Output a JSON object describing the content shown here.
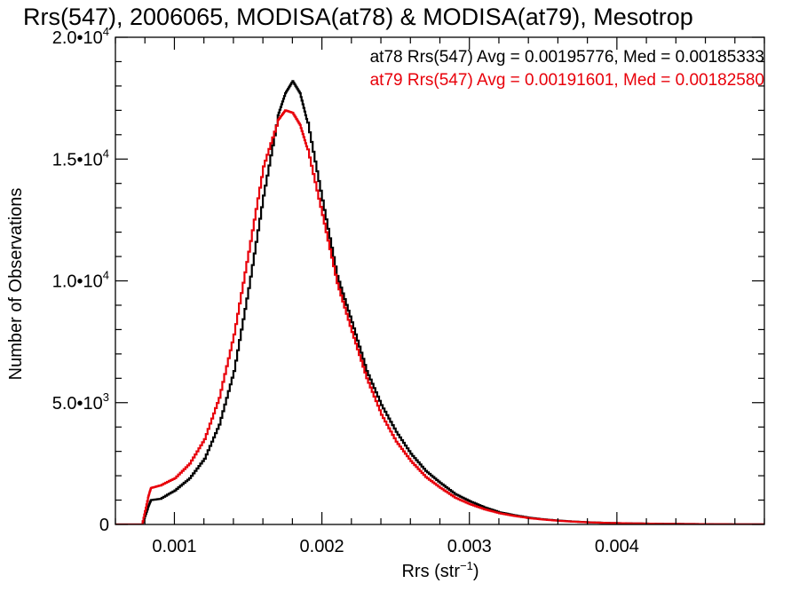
{
  "chart_data": {
    "type": "line",
    "step": true,
    "title": "Rrs(547), 2006065, MODISA(at78) & MODISA(at79), Mesotrop",
    "xlabel": {
      "base": "Rrs (str",
      "sup": "−1",
      "end": ")"
    },
    "ylabel": "Number of Observations",
    "xlim": [
      0.0006,
      0.005
    ],
    "ylim": [
      0,
      20000
    ],
    "x_ticks": [
      {
        "value": 0.001,
        "label": "0.001"
      },
      {
        "value": 0.002,
        "label": "0.002"
      },
      {
        "value": 0.003,
        "label": "0.003"
      },
      {
        "value": 0.004,
        "label": "0.004"
      }
    ],
    "y_ticks": [
      {
        "value": 0,
        "base": "0",
        "exp": ""
      },
      {
        "value": 5000,
        "base": "5.0•10",
        "exp": "3"
      },
      {
        "value": 10000,
        "base": "1.0•10",
        "exp": "4"
      },
      {
        "value": 15000,
        "base": "1.5•10",
        "exp": "4"
      },
      {
        "value": 20000,
        "base": "2.0•10",
        "exp": "4"
      }
    ],
    "grid": false,
    "series": [
      {
        "name": "at78",
        "color": "#000000",
        "annotation": "at78 Rrs(547) Avg = 0.00195776, Med = 0.00185333",
        "points": [
          [
            0.0006,
            0
          ],
          [
            0.00078,
            0
          ],
          [
            0.00082,
            700
          ],
          [
            0.00084,
            1000
          ],
          [
            0.0009,
            1050
          ],
          [
            0.001,
            1400
          ],
          [
            0.0011,
            1900
          ],
          [
            0.0012,
            2700
          ],
          [
            0.0013,
            4100
          ],
          [
            0.0014,
            6300
          ],
          [
            0.0015,
            9700
          ],
          [
            0.0016,
            13500
          ],
          [
            0.0017,
            16800
          ],
          [
            0.00175,
            17700
          ],
          [
            0.0018,
            18200
          ],
          [
            0.00185,
            17700
          ],
          [
            0.0019,
            16500
          ],
          [
            0.002,
            13300
          ],
          [
            0.0021,
            10200
          ],
          [
            0.0022,
            8300
          ],
          [
            0.0023,
            6300
          ],
          [
            0.0024,
            4900
          ],
          [
            0.0025,
            3800
          ],
          [
            0.0026,
            2900
          ],
          [
            0.0027,
            2200
          ],
          [
            0.0028,
            1700
          ],
          [
            0.0029,
            1250
          ],
          [
            0.003,
            950
          ],
          [
            0.0031,
            700
          ],
          [
            0.0032,
            500
          ],
          [
            0.0033,
            380
          ],
          [
            0.0034,
            280
          ],
          [
            0.0035,
            210
          ],
          [
            0.0036,
            160
          ],
          [
            0.0037,
            120
          ],
          [
            0.0038,
            90
          ],
          [
            0.0039,
            70
          ],
          [
            0.004,
            55
          ],
          [
            0.0041,
            45
          ],
          [
            0.0042,
            35
          ],
          [
            0.0043,
            28
          ],
          [
            0.0044,
            22
          ],
          [
            0.0045,
            18
          ],
          [
            0.0046,
            14
          ],
          [
            0.0047,
            11
          ],
          [
            0.0048,
            8
          ],
          [
            0.0049,
            6
          ],
          [
            0.005,
            5
          ]
        ]
      },
      {
        "name": "at79",
        "color": "#e8000a",
        "annotation": "at79 Rrs(547) Avg = 0.00191601, Med = 0.00182580",
        "points": [
          [
            0.0006,
            0
          ],
          [
            0.00078,
            0
          ],
          [
            0.00082,
            1100
          ],
          [
            0.00084,
            1500
          ],
          [
            0.0009,
            1600
          ],
          [
            0.001,
            1900
          ],
          [
            0.0011,
            2500
          ],
          [
            0.0012,
            3500
          ],
          [
            0.0013,
            5200
          ],
          [
            0.0014,
            7800
          ],
          [
            0.0015,
            11200
          ],
          [
            0.0016,
            14700
          ],
          [
            0.0017,
            16600
          ],
          [
            0.00175,
            17000
          ],
          [
            0.0018,
            16900
          ],
          [
            0.00185,
            16400
          ],
          [
            0.0019,
            15400
          ],
          [
            0.002,
            12700
          ],
          [
            0.0021,
            9900
          ],
          [
            0.0022,
            7900
          ],
          [
            0.0023,
            6000
          ],
          [
            0.0024,
            4500
          ],
          [
            0.0025,
            3400
          ],
          [
            0.0026,
            2600
          ],
          [
            0.0027,
            1950
          ],
          [
            0.0028,
            1500
          ],
          [
            0.0029,
            1100
          ],
          [
            0.003,
            830
          ],
          [
            0.0031,
            620
          ],
          [
            0.0032,
            460
          ],
          [
            0.0033,
            350
          ],
          [
            0.0034,
            260
          ],
          [
            0.0035,
            200
          ],
          [
            0.0036,
            150
          ],
          [
            0.0037,
            115
          ],
          [
            0.0038,
            88
          ],
          [
            0.0039,
            68
          ],
          [
            0.004,
            54
          ],
          [
            0.0041,
            44
          ],
          [
            0.0042,
            34
          ],
          [
            0.0043,
            27
          ],
          [
            0.0044,
            21
          ],
          [
            0.0045,
            17
          ],
          [
            0.0046,
            13
          ],
          [
            0.0047,
            10
          ],
          [
            0.0048,
            8
          ],
          [
            0.0049,
            6
          ],
          [
            0.005,
            5
          ]
        ]
      }
    ]
  }
}
